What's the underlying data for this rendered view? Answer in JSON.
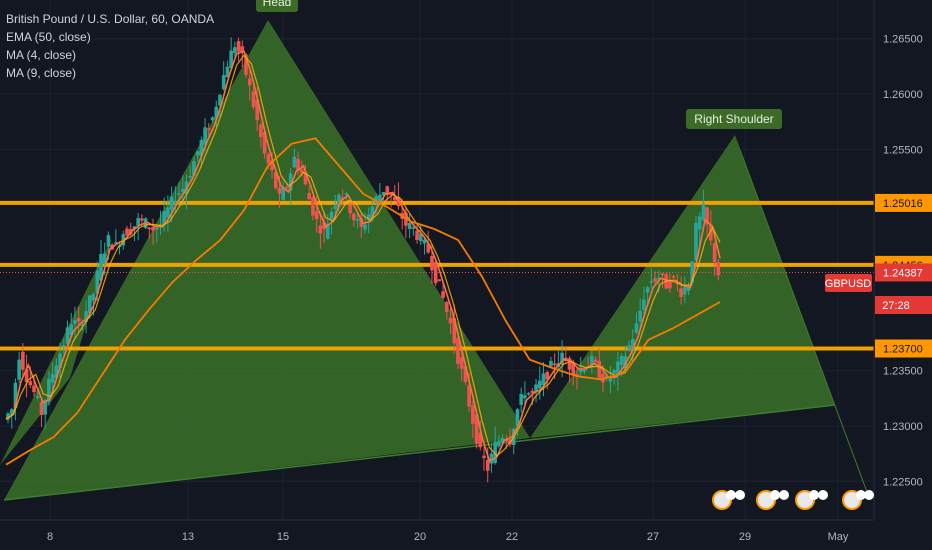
{
  "header": {
    "symbol_line": "British Pound / U.S. Dollar, 60, OANDA",
    "indicators": [
      "EMA (50, close)",
      "MA (4, close)",
      "MA (9, close)"
    ]
  },
  "colors": {
    "background": "#131722",
    "candle_up": "#26a69a",
    "candle_down": "#ef5350",
    "pattern_fill": "#3f7d2a",
    "level_line": "#ff9800",
    "level_line_alt": "#c9b800",
    "ema_line": "#f57c00",
    "ma4_line": "#ff7043",
    "ma9_line": "#ffb300",
    "label_green": "#3b6b27",
    "symbol_tag": "#e53935",
    "price_tag": "#f57c00",
    "axis_text": "#b2b5be"
  },
  "annotations": [
    {
      "text": "Head"
    },
    {
      "text": "Right Shoulder"
    }
  ],
  "symbol_tag": {
    "text": "GBPUSD"
  },
  "countdown": "27:28",
  "chart_data": {
    "type": "line",
    "title": "British Pound / U.S. Dollar, 60, OANDA",
    "x_tick_labels": [
      "8",
      "13",
      "15",
      "20",
      "22",
      "27",
      "29",
      "May"
    ],
    "y_tick_labels": [
      "1.26500",
      "1.26000",
      "1.25500",
      "1.23500",
      "1.23000",
      "1.22500"
    ],
    "ylim": [
      1.2215,
      1.2685
    ],
    "price_levels": [
      {
        "value": 1.25016,
        "label": "1.25016"
      },
      {
        "value": 1.24456,
        "label": "1.24456"
      },
      {
        "value": 1.237,
        "label": "1.23700"
      }
    ],
    "current_price": {
      "value": 1.24387,
      "label": "1.24387"
    },
    "series": [
      {
        "name": "GBPUSD",
        "values": [
          1.2306,
          1.2315,
          1.2365,
          1.2345,
          1.233,
          1.2312,
          1.2338,
          1.2358,
          1.2375,
          1.2395,
          1.239,
          1.2405,
          1.242,
          1.2452,
          1.2468,
          1.2462,
          1.2475,
          1.2478,
          1.2485,
          1.2483,
          1.2478,
          1.2482,
          1.2495,
          1.2508,
          1.2515,
          1.253,
          1.2548,
          1.2565,
          1.2578,
          1.2605,
          1.2628,
          1.2645,
          1.2632,
          1.2605,
          1.2575,
          1.2545,
          1.2528,
          1.2505,
          1.2518,
          1.2542,
          1.2528,
          1.2505,
          1.2485,
          1.2475,
          1.2495,
          1.2512,
          1.2505,
          1.2488,
          1.2478,
          1.2492,
          1.2505,
          1.2514,
          1.2508,
          1.2495,
          1.2482,
          1.2478,
          1.2468,
          1.2458,
          1.2435,
          1.2415,
          1.2392,
          1.2362,
          1.2335,
          1.2305,
          1.2275,
          1.2262,
          1.2282,
          1.2292,
          1.2288,
          1.2315,
          1.2332,
          1.2328,
          1.2338,
          1.2348,
          1.2358,
          1.2362,
          1.2355,
          1.2348,
          1.2355,
          1.2358,
          1.2348,
          1.234,
          1.2348,
          1.2358,
          1.2372,
          1.239,
          1.2418,
          1.2432,
          1.2435,
          1.2428,
          1.2432,
          1.2422,
          1.2428,
          1.2478,
          1.2495,
          1.2465,
          1.2438
        ]
      },
      {
        "name": "EMA (50, close)",
        "values": [
          1.2265,
          1.2278,
          1.229,
          1.2312,
          1.2345,
          1.2378,
          1.2405,
          1.243,
          1.245,
          1.2468,
          1.2495,
          1.2535,
          1.2555,
          1.256,
          1.2535,
          1.251,
          1.2498,
          1.2485,
          1.2478,
          1.2468,
          1.2435,
          1.2395,
          1.236,
          1.2352,
          1.2345,
          1.2342,
          1.2348,
          1.2378,
          1.2388,
          1.24,
          1.2412
        ]
      }
    ]
  }
}
